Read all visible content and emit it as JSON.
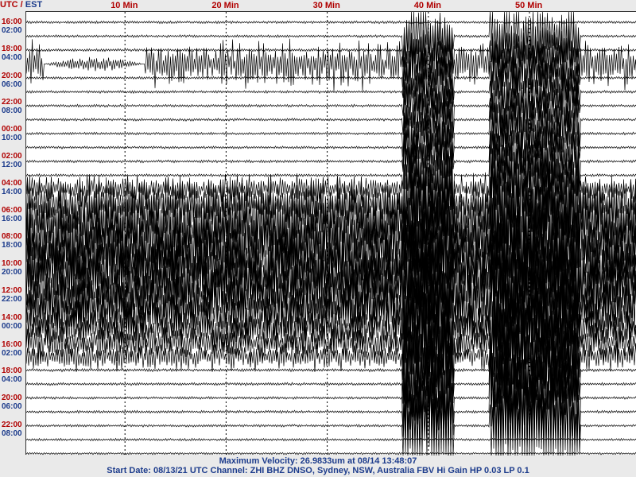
{
  "header": {
    "utc": "UTC",
    "sep": " / ",
    "est": "EST"
  },
  "minute_labels": [
    {
      "minute": 10,
      "text": "10 Min"
    },
    {
      "minute": 20,
      "text": "20 Min"
    },
    {
      "minute": 30,
      "text": "30 Min"
    },
    {
      "minute": 40,
      "text": "40 Min"
    },
    {
      "minute": 50,
      "text": "50 Min"
    }
  ],
  "time_labels": [
    {
      "utc": "16:00",
      "est": "02:00"
    },
    {
      "utc": "18:00",
      "est": "04:00"
    },
    {
      "utc": "20:00",
      "est": "06:00"
    },
    {
      "utc": "22:00",
      "est": "08:00"
    },
    {
      "utc": "00:00",
      "est": "10:00"
    },
    {
      "utc": "02:00",
      "est": "12:00"
    },
    {
      "utc": "04:00",
      "est": "14:00"
    },
    {
      "utc": "06:00",
      "est": "16:00"
    },
    {
      "utc": "08:00",
      "est": "18:00"
    },
    {
      "utc": "10:00",
      "est": "20:00"
    },
    {
      "utc": "12:00",
      "est": "22:00"
    },
    {
      "utc": "14:00",
      "est": "00:00"
    },
    {
      "utc": "16:00",
      "est": "02:00"
    },
    {
      "utc": "18:00",
      "est": "04:00"
    },
    {
      "utc": "20:00",
      "est": "06:00"
    },
    {
      "utc": "22:00",
      "est": "08:00"
    }
  ],
  "footer": {
    "line1": "Maximum Velocity: 26.9833um at 08/14 13:48:07",
    "line2": "Start Date: 08/13/21 UTC Channel: ZHI  BHZ  DNSO, Sydney, NSW, Australia  FBV Hi Gain HP 0.03  LP 0.1"
  },
  "colors": {
    "utc": "#b00000",
    "est": "#1d3c8c",
    "trace": "#000000",
    "grid": "#000000"
  },
  "chart_data": {
    "type": "line",
    "description_type": "helicorder",
    "x_range_minutes": [
      0,
      60
    ],
    "rows_per_hour": 1,
    "row_count": 32,
    "row_activity": [
      {
        "row": 0,
        "level": 0.15
      },
      {
        "row": 1,
        "level": 0.15
      },
      {
        "row": 2,
        "level": 0.18
      },
      {
        "row": 3,
        "level": 0.5,
        "note": "low-frequency burst near 2-12 min"
      },
      {
        "row": 4,
        "level": 0.15
      },
      {
        "row": 5,
        "level": 0.18
      },
      {
        "row": 6,
        "level": 0.15
      },
      {
        "row": 7,
        "level": 0.15
      },
      {
        "row": 8,
        "level": 0.15
      },
      {
        "row": 9,
        "level": 0.15
      },
      {
        "row": 10,
        "level": 0.18
      },
      {
        "row": 11,
        "level": 0.18
      },
      {
        "row": 12,
        "level": 0.3
      },
      {
        "row": 13,
        "level": 0.5
      },
      {
        "row": 14,
        "level": 0.8
      },
      {
        "row": 15,
        "level": 1.0
      },
      {
        "row": 16,
        "level": 1.0
      },
      {
        "row": 17,
        "level": 1.0
      },
      {
        "row": 18,
        "level": 1.0
      },
      {
        "row": 19,
        "level": 1.0
      },
      {
        "row": 20,
        "level": 0.9
      },
      {
        "row": 21,
        "level": 0.7
      },
      {
        "row": 22,
        "level": 0.5
      },
      {
        "row": 23,
        "level": 0.4
      },
      {
        "row": 24,
        "level": 0.3
      },
      {
        "row": 25,
        "level": 0.25
      },
      {
        "row": 26,
        "level": 0.2
      },
      {
        "row": 27,
        "level": 0.15
      },
      {
        "row": 28,
        "level": 0.15
      },
      {
        "row": 29,
        "level": 0.12
      },
      {
        "row": 30,
        "level": 0.1
      },
      {
        "row": 31,
        "level": 0.05
      }
    ],
    "big_event_windows_minutes": [
      [
        37.5,
        42.5
      ],
      [
        46,
        55
      ]
    ],
    "grid_minutes": [
      10,
      20,
      30,
      40,
      50
    ]
  }
}
